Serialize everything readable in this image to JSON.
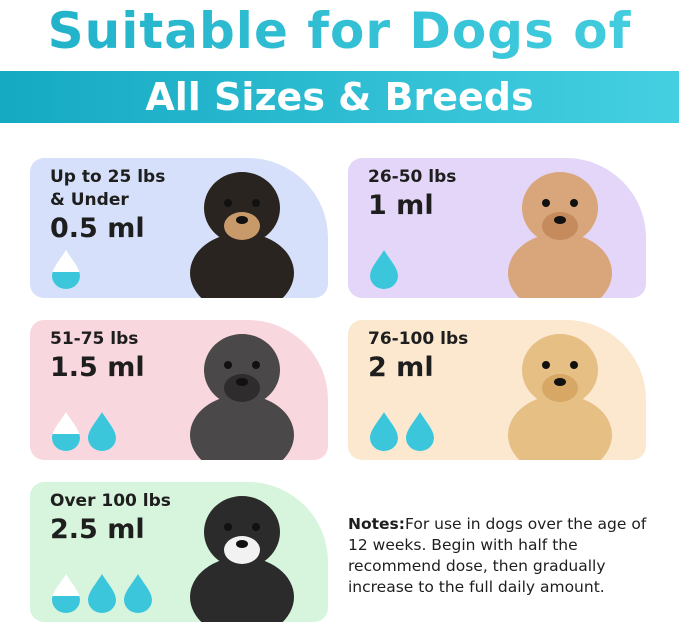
{
  "header": {
    "title": "Suitable for Dogs of",
    "subtitle": "All Sizes & Breeds"
  },
  "colors": {
    "accent": "#22b8cf",
    "drop": "#3cc6dc"
  },
  "cards": [
    {
      "label": "Up to 25 lbs",
      "label2": "& Under",
      "dose": "0.5 ml",
      "drops": [
        0.5
      ],
      "bg": "#d6e0fa",
      "dog": "chihuahua",
      "fur": "#2a2420",
      "fur2": "#c89a6a"
    },
    {
      "label": "26-50 lbs",
      "label2": "",
      "dose": "1 ml",
      "drops": [
        1
      ],
      "bg": "#e3d6f8",
      "dog": "poodle",
      "fur": "#d9a57a",
      "fur2": "#c58b5c"
    },
    {
      "label": "51-75 lbs",
      "label2": "",
      "dose": "1.5 ml",
      "drops": [
        0.5,
        1
      ],
      "bg": "#f9d7df",
      "dog": "french-bulldog",
      "fur": "#4a4848",
      "fur2": "#2e2c2c"
    },
    {
      "label": "76-100 lbs",
      "label2": "",
      "dose": "2 ml",
      "drops": [
        1,
        1
      ],
      "bg": "#fbe8cf",
      "dog": "golden-retriever",
      "fur": "#e6bf84",
      "fur2": "#d7a865"
    },
    {
      "label": "Over 100 lbs",
      "label2": "",
      "dose": "2.5 ml",
      "drops": [
        0.5,
        1,
        1
      ],
      "bg": "#d6f5dc",
      "dog": "alaskan-malamute",
      "fur": "#2b2b2b",
      "fur2": "#f2f2f2"
    }
  ],
  "notes": {
    "heading": "Notes:",
    "text": "For use in dogs over the age of 12 weeks. Begin with half  the recommend dose, then gradually increase to the full daily amount."
  }
}
